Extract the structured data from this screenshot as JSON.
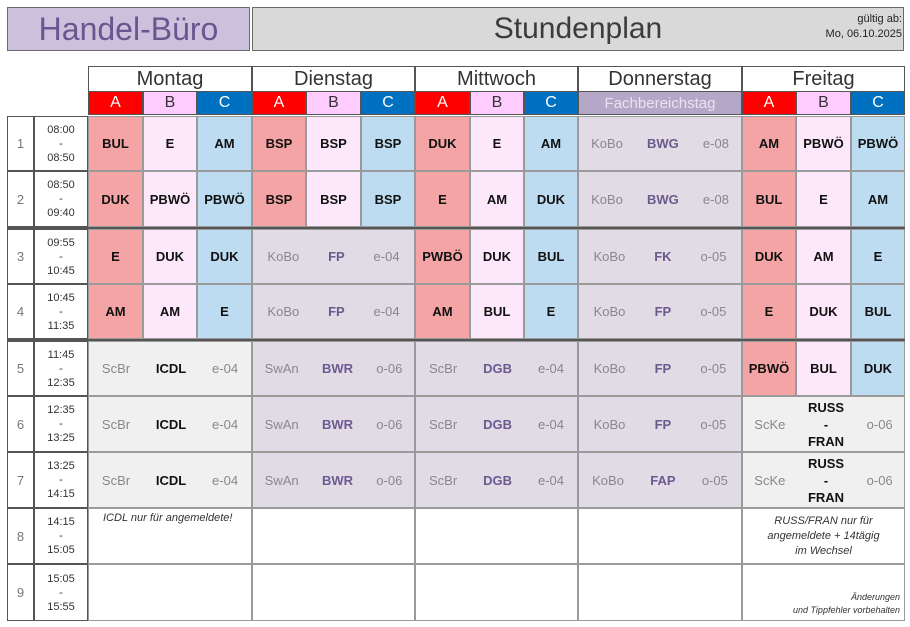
{
  "header": {
    "brand": "Handel-Büro",
    "title": "Stundenplan",
    "valid_label": "gültig ab:",
    "valid_date": "Mo, 06.10.2025"
  },
  "days": [
    {
      "name": "Montag",
      "groups": [
        "A",
        "B",
        "C"
      ]
    },
    {
      "name": "Dienstag",
      "groups": [
        "A",
        "B",
        "C"
      ]
    },
    {
      "name": "Mittwoch",
      "groups": [
        "A",
        "B",
        "C"
      ]
    },
    {
      "name": "Donnerstag",
      "banner": "Fachbereichstag"
    },
    {
      "name": "Freitag",
      "groups": [
        "A",
        "B",
        "C"
      ]
    }
  ],
  "periods": [
    {
      "num": "1",
      "from": "08:00",
      "sep": "-",
      "to": "08:50"
    },
    {
      "num": "2",
      "from": "08:50",
      "sep": "-",
      "to": "09:40"
    },
    {
      "num": "3",
      "from": "09:55",
      "sep": "-",
      "to": "10:45"
    },
    {
      "num": "4",
      "from": "10:45",
      "sep": "-",
      "to": "11:35"
    },
    {
      "num": "5",
      "from": "11:45",
      "sep": "-",
      "to": "12:35"
    },
    {
      "num": "6",
      "from": "12:35",
      "sep": "-",
      "to": "13:25"
    },
    {
      "num": "7",
      "from": "13:25",
      "sep": "-",
      "to": "14:15"
    },
    {
      "num": "8",
      "from": "14:15",
      "sep": "-",
      "to": "15:05"
    },
    {
      "num": "9",
      "from": "15:05",
      "sep": "-",
      "to": "15:55"
    }
  ],
  "mon": {
    "r1": [
      "BUL",
      "E",
      "AM"
    ],
    "r2": [
      "DUK",
      "PBWÖ",
      "PBWÖ"
    ],
    "r3": [
      "E",
      "DUK",
      "DUK"
    ],
    "r4": [
      "AM",
      "AM",
      "E"
    ],
    "joint": {
      "teacher": "ScBr",
      "subject": "ICDL",
      "room": "e-04"
    },
    "note": "ICDL nur für angemeldete!"
  },
  "tue": {
    "r1": [
      "BSP",
      "BSP",
      "BSP"
    ],
    "r2": [
      "BSP",
      "BSP",
      "BSP"
    ],
    "j34": {
      "teacher": "KoBo",
      "subject": "FP",
      "room": "e-04"
    },
    "j57": {
      "teacher": "SwAn",
      "subject": "BWR",
      "room": "o-06"
    }
  },
  "wed": {
    "r1": [
      "DUK",
      "E",
      "AM"
    ],
    "r2": [
      "E",
      "AM",
      "DUK"
    ],
    "r3": [
      "PWBÖ",
      "DUK",
      "BUL"
    ],
    "r4": [
      "AM",
      "BUL",
      "E"
    ],
    "joint": {
      "teacher": "ScBr",
      "subject": "DGB",
      "room": "e-04"
    }
  },
  "thu": {
    "rows": [
      {
        "teacher": "KoBo",
        "subject": "BWG",
        "room": "e-08"
      },
      {
        "teacher": "KoBo",
        "subject": "BWG",
        "room": "e-08"
      },
      {
        "teacher": "KoBo",
        "subject": "FK",
        "room": "o-05"
      },
      {
        "teacher": "KoBo",
        "subject": "FP",
        "room": "o-05"
      },
      {
        "teacher": "KoBo",
        "subject": "FP",
        "room": "o-05"
      },
      {
        "teacher": "KoBo",
        "subject": "FP",
        "room": "o-05"
      },
      {
        "teacher": "KoBo",
        "subject": "FAP",
        "room": "o-05"
      }
    ]
  },
  "fri": {
    "r1": [
      "AM",
      "PBWÖ",
      "PBWÖ"
    ],
    "r2": [
      "BUL",
      "E",
      "AM"
    ],
    "r3": [
      "DUK",
      "AM",
      "E"
    ],
    "r4": [
      "E",
      "DUK",
      "BUL"
    ],
    "r5": [
      "PBWÖ",
      "BUL",
      "DUK"
    ],
    "joint": {
      "teacher": "ScKe",
      "subject_top": "RUSS",
      "dash": "-",
      "subject_bottom": "FRAN",
      "room": "o-06"
    },
    "note": "RUSS/FRAN nur für angemeldete + 14tägig im Wechsel",
    "footer1": "Änderungen",
    "footer2": "und Tippfehler vorbehalten"
  }
}
